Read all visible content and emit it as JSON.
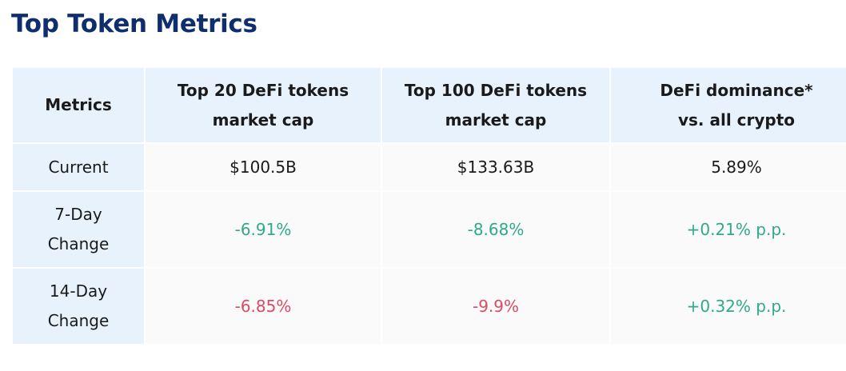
{
  "title": "Top Token Metrics",
  "table": {
    "headers": {
      "metrics": "Metrics",
      "col1": [
        "Top 20 DeFi tokens",
        "market cap"
      ],
      "col2": [
        "Top 100 DeFi tokens",
        "market cap"
      ],
      "col3": [
        "DeFi dominance*",
        "vs. all crypto"
      ]
    },
    "rows": [
      {
        "label": [
          "Current"
        ],
        "values": [
          "$100.5B",
          "$133.63B",
          "5.89%"
        ]
      },
      {
        "label": [
          "7-Day",
          "Change"
        ],
        "values": [
          "-6.91%",
          "-8.68%",
          "+0.21% p.p."
        ]
      },
      {
        "label": [
          "14-Day",
          "Change"
        ],
        "values": [
          "-6.85%",
          "-9.9%",
          "+0.32% p.p."
        ]
      }
    ]
  },
  "colors": {
    "title": "#0f2e6e",
    "header_bg": "#e8f2fc",
    "cell_bg": "#fafafa",
    "green": "#2fa98a",
    "red": "#dc4a63"
  }
}
